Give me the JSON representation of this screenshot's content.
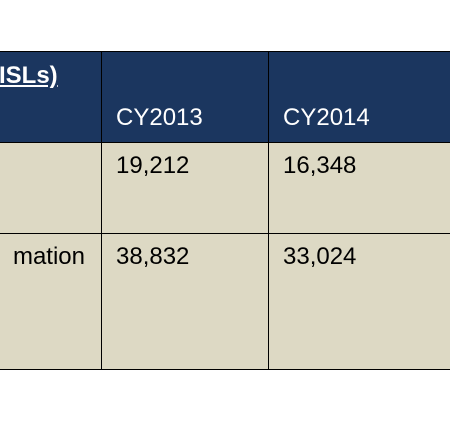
{
  "table": {
    "header": [
      "ISLs)",
      "CY2013",
      "CY2014"
    ],
    "rows": [
      {
        "values": [
          "19,212",
          "16,348"
        ]
      },
      {
        "label": "mation",
        "values": [
          "38,832",
          "33,024"
        ]
      }
    ]
  }
}
